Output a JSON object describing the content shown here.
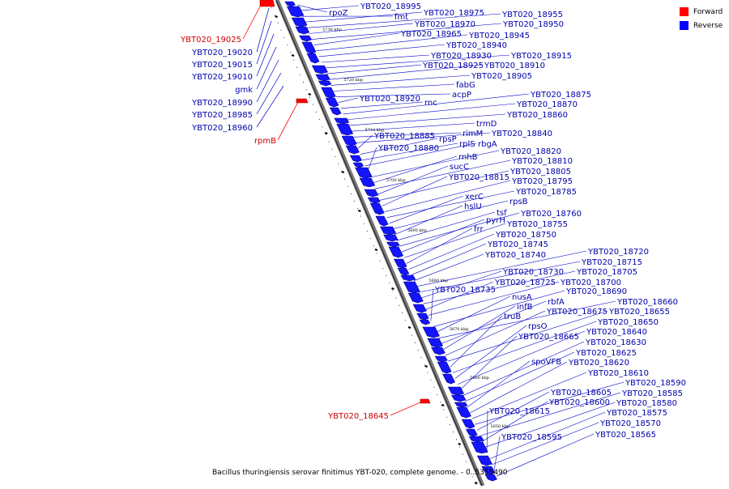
{
  "caption": "Bacillus thuringiensis serovar finitimus YBT-020, complete genome. - 0..5355490",
  "legend": [
    {
      "label": "Forward",
      "color": "#ff0000"
    },
    {
      "label": "Reverse",
      "color": "#0000ff"
    }
  ],
  "scale_ticks": [
    "5730 kbp",
    "5720 kbp",
    "5710 kbp",
    "5700 kbp",
    "5690 kbp",
    "5680 kbp",
    "5670 kbp",
    "5660 kbp",
    "5650 kbp"
  ],
  "forward_labels": [
    "YBT020_19025",
    "rpmB",
    "YBT020_18645"
  ],
  "reverse_labels_left": [
    "YBT020_19020",
    "YBT020_19015",
    "YBT020_19010",
    "gmk",
    "YBT020_18990",
    "YBT020_18985",
    "YBT020_18960"
  ],
  "reverse_labels_right": [
    "rpoZ",
    "YBT020_18995",
    "fmt",
    "YBT020_18975",
    "YBT020_18955",
    "YBT020_18970",
    "YBT020_18950",
    "YBT020_18965",
    "YBT020_18945",
    "YBT020_18940",
    "YBT020_18930",
    "YBT020_18915",
    "YBT020_18925",
    "YBT020_18910",
    "YBT020_18905",
    "fabG",
    "acpP",
    "YBT020_18920",
    "rnc",
    "YBT020_18875",
    "YBT020_18870",
    "YBT020_18860",
    "trmD",
    "rimM",
    "YBT020_18840",
    "YBT020_18885",
    "rpsP",
    "rplS",
    "rbgA",
    "YBT020_18880",
    "YBT020_18820",
    "rnhB",
    "YBT020_18810",
    "sucC",
    "YBT020_18805",
    "YBT020_18815",
    "YBT020_18795",
    "YBT020_18785",
    "xerC",
    "rpsB",
    "hslU",
    "tsf",
    "YBT020_18760",
    "pyrH",
    "YBT020_18755",
    "frr",
    "YBT020_18750",
    "YBT020_18745",
    "YBT020_18740",
    "YBT020_18720",
    "YBT020_18715",
    "YBT020_18730",
    "YBT020_18705",
    "YBT020_18725",
    "YBT020_18700",
    "YBT020_18735",
    "YBT020_18690",
    "nusA",
    "YBT020_18660",
    "rbfA",
    "infB",
    "YBT020_18675",
    "YBT020_18655",
    "truB",
    "YBT020_18650",
    "rpsO",
    "YBT020_18640",
    "YBT020_18665",
    "YBT020_18630",
    "YBT020_18625",
    "spoVFB",
    "YBT020_18620",
    "YBT020_18610",
    "YBT020_18590",
    "YBT020_18605",
    "YBT020_18585",
    "YBT020_18600",
    "YBT020_18580",
    "YBT020_18615",
    "YBT020_18575",
    "YBT020_18570",
    "YBT020_18595",
    "YBT020_18565"
  ]
}
